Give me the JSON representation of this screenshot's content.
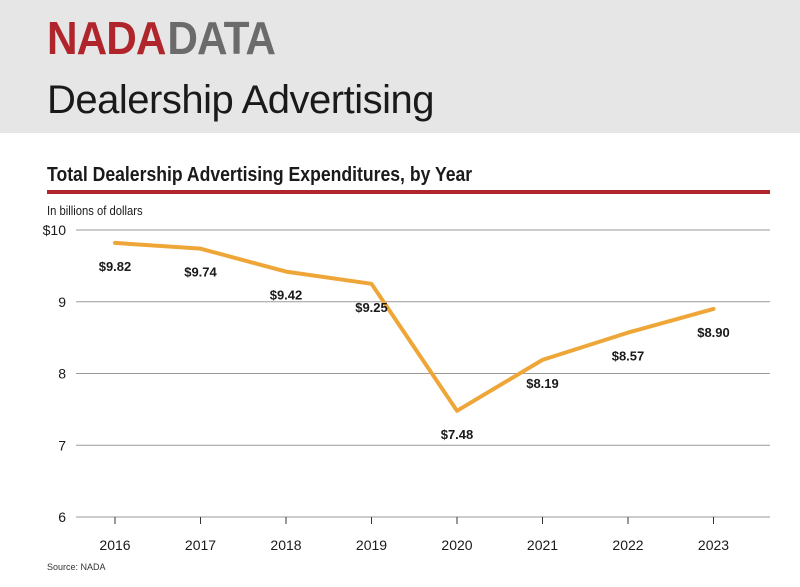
{
  "header": {
    "logo_part1": "NADA",
    "logo_part2": "DATA",
    "title": "Dealership Advertising"
  },
  "source": "Source: NADA",
  "colors": {
    "brand_red": "#b0252b",
    "logo_gray": "#6b6b6b",
    "header_bg": "#e6e6e6",
    "line": "#eea638"
  },
  "chart_data": {
    "type": "line",
    "title": "Total Dealership Advertising Expenditures, by Year",
    "units_note": "In billions of dollars",
    "xlabel": "",
    "ylabel": "",
    "categories": [
      "2016",
      "2017",
      "2018",
      "2019",
      "2020",
      "2021",
      "2022",
      "2023"
    ],
    "series": [
      {
        "values": [
          9.82,
          9.74,
          9.42,
          9.25,
          7.48,
          8.19,
          8.57,
          8.9
        ],
        "labels": [
          "$9.82",
          "$9.74",
          "$9.42",
          "$9.25",
          "$7.48",
          "$8.19",
          "$8.57",
          "$8.90"
        ]
      }
    ],
    "ylim": [
      6,
      10
    ],
    "yticks": [
      6,
      7,
      8,
      9,
      10
    ],
    "ytick_labels": [
      "6",
      "7",
      "8",
      "9",
      "$10"
    ],
    "grid": true,
    "legend": "none"
  }
}
